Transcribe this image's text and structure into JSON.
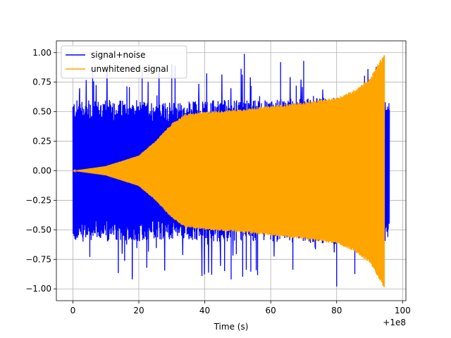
{
  "chart_data": {
    "type": "line",
    "title": "",
    "xlabel": "Time (s)",
    "ylabel": "",
    "x_offset_label": "+1e8",
    "xlim": [
      -5,
      101
    ],
    "ylim": [
      -1.1,
      1.1
    ],
    "xticks": [
      0,
      20,
      40,
      60,
      80,
      100
    ],
    "yticks": [
      -1.0,
      -0.75,
      -0.5,
      -0.25,
      0.0,
      0.25,
      0.5,
      0.75,
      1.0
    ],
    "xtick_labels": [
      "0",
      "20",
      "40",
      "60",
      "80",
      "100"
    ],
    "ytick_labels": [
      "−1.00",
      "−0.75",
      "−0.50",
      "−0.25",
      "0.00",
      "0.25",
      "0.50",
      "0.75",
      "1.00"
    ],
    "grid": true,
    "legend_position": "top-left",
    "series": [
      {
        "name": "signal+noise",
        "color": "#0000ff",
        "x_range": [
          0,
          96
        ],
        "envelope": [
          [
            0,
            0.6
          ],
          [
            10,
            0.6
          ],
          [
            20,
            0.6
          ],
          [
            30,
            0.58
          ],
          [
            40,
            0.6
          ],
          [
            50,
            0.6
          ],
          [
            60,
            0.6
          ],
          [
            70,
            0.62
          ],
          [
            80,
            0.62
          ],
          [
            90,
            0.62
          ],
          [
            96,
            0.6
          ]
        ],
        "peaks": [
          [
            6,
            0.85
          ],
          [
            21,
            0.88
          ],
          [
            18,
            -0.92
          ],
          [
            30,
            0.9
          ],
          [
            52,
            0.99
          ],
          [
            48,
            -0.92
          ],
          [
            63,
            0.92
          ],
          [
            70,
            0.93
          ],
          [
            80,
            -0.98
          ],
          [
            92,
            0.88
          ]
        ]
      },
      {
        "name": "unwhitened signal",
        "color": "#ffa500",
        "x_range": [
          0,
          94.5
        ],
        "envelope": [
          [
            0,
            0.0
          ],
          [
            10,
            0.04
          ],
          [
            20,
            0.13
          ],
          [
            25,
            0.25
          ],
          [
            30,
            0.4
          ],
          [
            34,
            0.48
          ],
          [
            40,
            0.5
          ],
          [
            50,
            0.52
          ],
          [
            60,
            0.55
          ],
          [
            70,
            0.58
          ],
          [
            80,
            0.62
          ],
          [
            85,
            0.68
          ],
          [
            90,
            0.78
          ],
          [
            94.5,
            1.0
          ]
        ]
      }
    ]
  }
}
